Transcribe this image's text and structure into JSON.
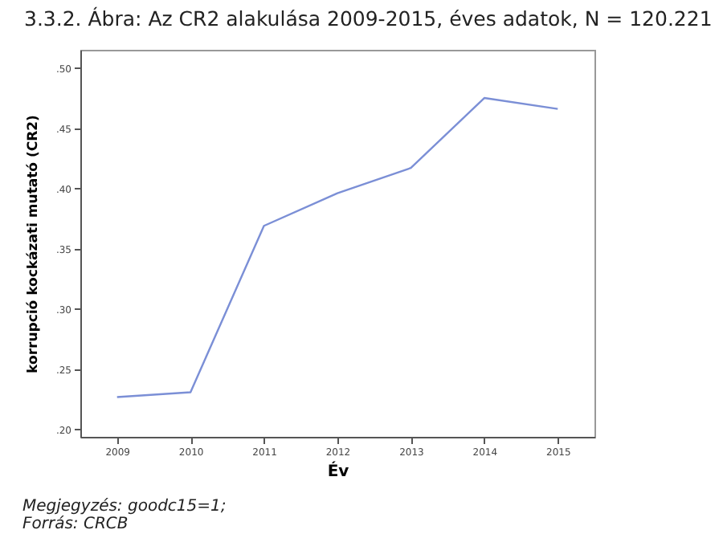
{
  "chart_data": {
    "type": "line",
    "title": "3.3.2. Ábra: Az CR2 alakulása 2009-2015, éves adatok, N = 120.221",
    "xlabel": "Év",
    "ylabel": "korrupció kockázati mutató (CR2)",
    "categories": [
      "2009",
      "2010",
      "2011",
      "2012",
      "2013",
      "2014",
      "2015"
    ],
    "series": [
      {
        "color": "#7b8fd6",
        "values": [
          0.227,
          0.231,
          0.369,
          0.396,
          0.417,
          0.475,
          0.466
        ]
      }
    ],
    "ylim": [
      0.194,
      0.515
    ],
    "yticks": [
      {
        "value": 0.2,
        "label": ".20"
      },
      {
        "value": 0.25,
        "label": ".25"
      },
      {
        "value": 0.3,
        "label": ".30"
      },
      {
        "value": 0.35,
        "label": ".35"
      },
      {
        "value": 0.4,
        "label": ".40"
      },
      {
        "value": 0.45,
        "label": ".45"
      },
      {
        "value": 0.5,
        "label": ".50"
      }
    ],
    "grid": false,
    "marker": "none",
    "line_style": "solid",
    "annotations": [
      "Megjegyzés: goodc15=1;",
      "Forrás: CRCB"
    ]
  }
}
